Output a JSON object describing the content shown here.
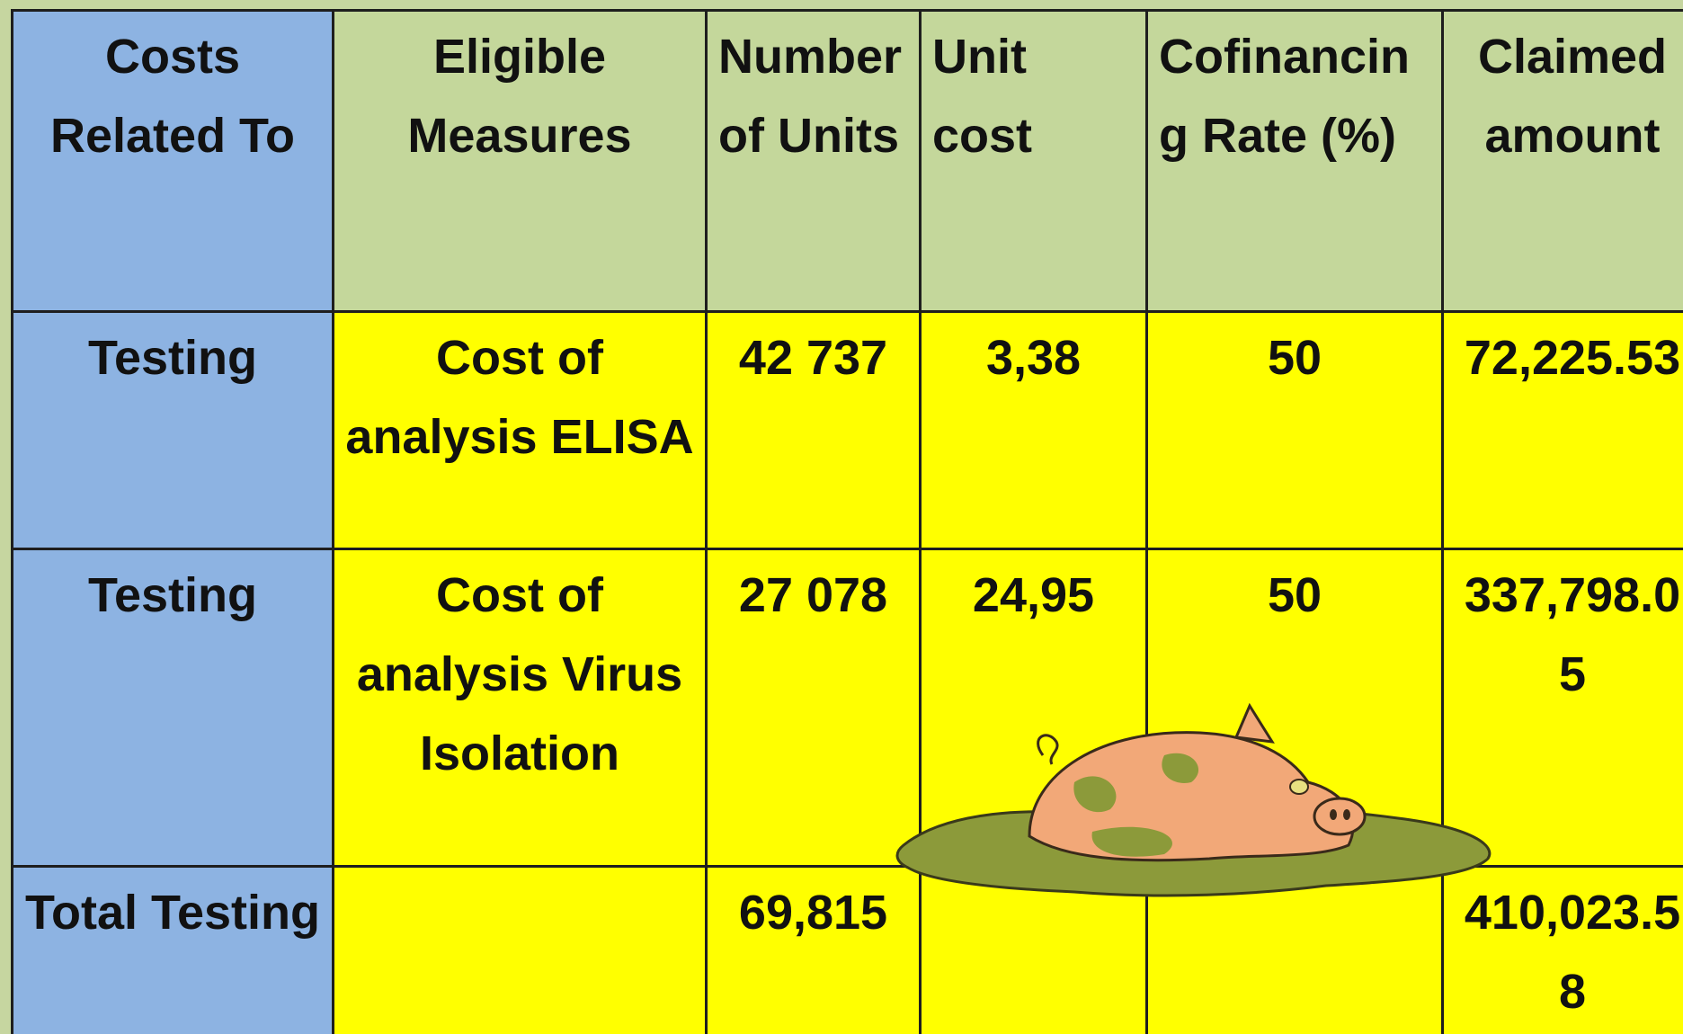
{
  "table": {
    "header": [
      "Costs Related To",
      "Eligible Measures",
      "Number of Units",
      "Unit cost",
      "Cofinancing Rate (%)",
      "Claimed amount"
    ],
    "rows": [
      [
        "Testing",
        "Cost of analysis ELISA",
        "42 737",
        "3,38",
        "50",
        "72,225.53"
      ],
      [
        "Testing",
        "Cost of analysis Virus Isolation",
        "27 078",
        "24,95",
        "50",
        "337,798.05"
      ],
      [
        "Total Testing",
        null,
        "69,815",
        null,
        null,
        "410,023.58"
      ]
    ]
  }
}
